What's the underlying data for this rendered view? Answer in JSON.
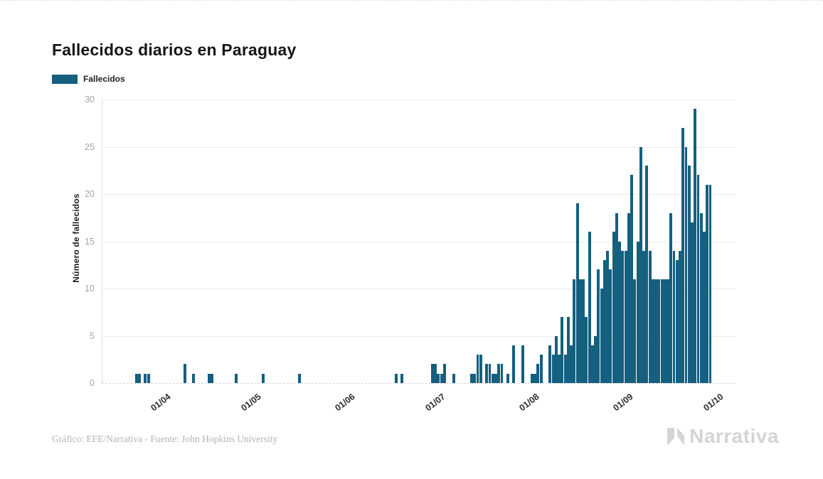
{
  "title": "Fallecidos diarios en Paraguay",
  "legend": {
    "label": "Fallecidos",
    "color": "#155f7f"
  },
  "footer": {
    "credit": "Gráfico: EFE/Narrativa - Fuente: John Hopkins University"
  },
  "logo": {
    "text": "Narrativa",
    "color": "#d4d4d4"
  },
  "chart_data": {
    "type": "bar",
    "title": "Fallecidos diarios en Paraguay",
    "xlabel": "",
    "ylabel": "Número de fallecidos",
    "ylim": [
      0,
      30
    ],
    "yticks": [
      "0",
      "5",
      "10",
      "15",
      "20",
      "25",
      "30"
    ],
    "grid": "horizontal",
    "legend_position": "top-left",
    "legend_entries": [
      "Fallecidos"
    ],
    "bar_color": "#155f7f",
    "x_start": "03-12",
    "x_end": "10-01",
    "x_ticks": [
      {
        "d": "04-01",
        "label": "01/04"
      },
      {
        "d": "05-01",
        "label": "01/05"
      },
      {
        "d": "06-01",
        "label": "01/06"
      },
      {
        "d": "07-01",
        "label": "01/07"
      },
      {
        "d": "08-01",
        "label": "01/08"
      },
      {
        "d": "09-01",
        "label": "01/09"
      },
      {
        "d": "10-01",
        "label": "01/10"
      }
    ],
    "points": [
      {
        "d": "03-23",
        "v": 1
      },
      {
        "d": "03-24",
        "v": 1
      },
      {
        "d": "03-26",
        "v": 1
      },
      {
        "d": "03-27",
        "v": 1
      },
      {
        "d": "04-08",
        "v": 2
      },
      {
        "d": "04-11",
        "v": 1
      },
      {
        "d": "04-16",
        "v": 1
      },
      {
        "d": "04-17",
        "v": 1
      },
      {
        "d": "04-25",
        "v": 1
      },
      {
        "d": "05-04",
        "v": 1
      },
      {
        "d": "05-16",
        "v": 1
      },
      {
        "d": "06-17",
        "v": 1
      },
      {
        "d": "06-19",
        "v": 1
      },
      {
        "d": "06-29",
        "v": 2
      },
      {
        "d": "06-30",
        "v": 2
      },
      {
        "d": "07-01",
        "v": 1
      },
      {
        "d": "07-02",
        "v": 1
      },
      {
        "d": "07-03",
        "v": 2
      },
      {
        "d": "07-06",
        "v": 1
      },
      {
        "d": "07-12",
        "v": 1
      },
      {
        "d": "07-13",
        "v": 1
      },
      {
        "d": "07-14",
        "v": 3
      },
      {
        "d": "07-15",
        "v": 3
      },
      {
        "d": "07-17",
        "v": 2
      },
      {
        "d": "07-18",
        "v": 2
      },
      {
        "d": "07-19",
        "v": 1
      },
      {
        "d": "07-20",
        "v": 1
      },
      {
        "d": "07-21",
        "v": 2
      },
      {
        "d": "07-22",
        "v": 2
      },
      {
        "d": "07-24",
        "v": 1
      },
      {
        "d": "07-26",
        "v": 4
      },
      {
        "d": "07-29",
        "v": 4
      },
      {
        "d": "08-01",
        "v": 1
      },
      {
        "d": "08-02",
        "v": 1
      },
      {
        "d": "08-03",
        "v": 2
      },
      {
        "d": "08-04",
        "v": 3
      },
      {
        "d": "08-07",
        "v": 4
      },
      {
        "d": "08-08",
        "v": 3
      },
      {
        "d": "08-09",
        "v": 5
      },
      {
        "d": "08-10",
        "v": 3
      },
      {
        "d": "08-11",
        "v": 7
      },
      {
        "d": "08-12",
        "v": 3
      },
      {
        "d": "08-13",
        "v": 7
      },
      {
        "d": "08-14",
        "v": 4
      },
      {
        "d": "08-15",
        "v": 11
      },
      {
        "d": "08-16",
        "v": 19
      },
      {
        "d": "08-17",
        "v": 11
      },
      {
        "d": "08-18",
        "v": 11
      },
      {
        "d": "08-19",
        "v": 7
      },
      {
        "d": "08-20",
        "v": 16
      },
      {
        "d": "08-21",
        "v": 4
      },
      {
        "d": "08-22",
        "v": 5
      },
      {
        "d": "08-23",
        "v": 12
      },
      {
        "d": "08-24",
        "v": 10
      },
      {
        "d": "08-25",
        "v": 13
      },
      {
        "d": "08-26",
        "v": 14
      },
      {
        "d": "08-27",
        "v": 12
      },
      {
        "d": "08-28",
        "v": 16
      },
      {
        "d": "08-29",
        "v": 18
      },
      {
        "d": "08-30",
        "v": 15
      },
      {
        "d": "08-31",
        "v": 14
      },
      {
        "d": "09-01",
        "v": 14
      },
      {
        "d": "09-02",
        "v": 18
      },
      {
        "d": "09-03",
        "v": 22
      },
      {
        "d": "09-04",
        "v": 11
      },
      {
        "d": "09-05",
        "v": 15
      },
      {
        "d": "09-06",
        "v": 25
      },
      {
        "d": "09-07",
        "v": 14
      },
      {
        "d": "09-08",
        "v": 23
      },
      {
        "d": "09-09",
        "v": 14
      },
      {
        "d": "09-10",
        "v": 11
      },
      {
        "d": "09-11",
        "v": 11
      },
      {
        "d": "09-12",
        "v": 11
      },
      {
        "d": "09-13",
        "v": 11
      },
      {
        "d": "09-14",
        "v": 11
      },
      {
        "d": "09-15",
        "v": 11
      },
      {
        "d": "09-16",
        "v": 18
      },
      {
        "d": "09-17",
        "v": 14
      },
      {
        "d": "09-18",
        "v": 13
      },
      {
        "d": "09-19",
        "v": 14
      },
      {
        "d": "09-20",
        "v": 27
      },
      {
        "d": "09-21",
        "v": 25
      },
      {
        "d": "09-22",
        "v": 23
      },
      {
        "d": "09-23",
        "v": 17
      },
      {
        "d": "09-24",
        "v": 29
      },
      {
        "d": "09-25",
        "v": 22
      },
      {
        "d": "09-26",
        "v": 18
      },
      {
        "d": "09-27",
        "v": 16
      },
      {
        "d": "09-28",
        "v": 21
      },
      {
        "d": "09-29",
        "v": 21
      }
    ]
  }
}
